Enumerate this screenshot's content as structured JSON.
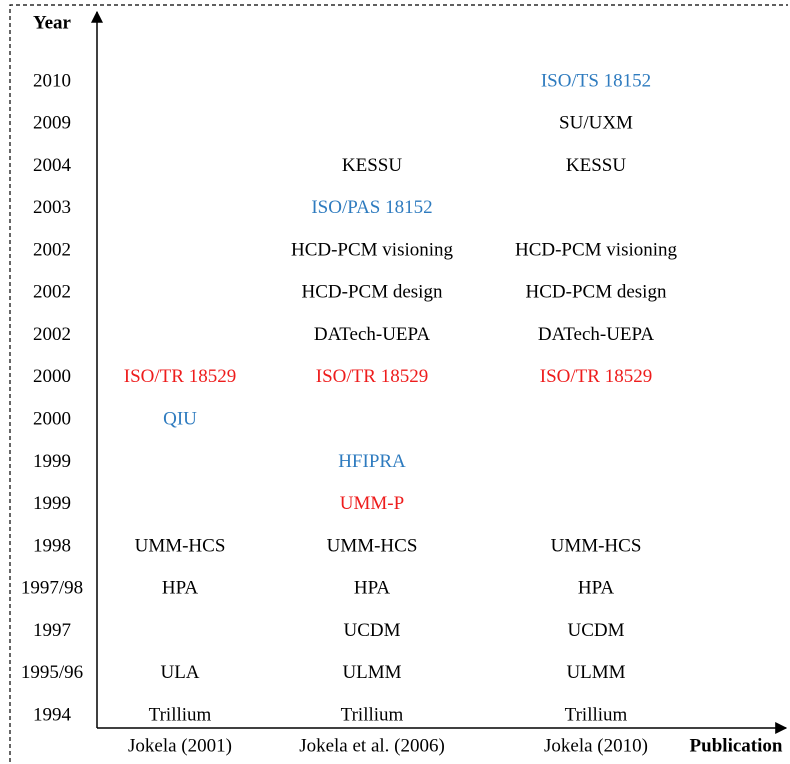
{
  "axes": {
    "y_label": "Year",
    "x_label": "Publication"
  },
  "columns": [
    "Jokela (2001)",
    "Jokela et al. (2006)",
    "Jokela (2010)"
  ],
  "rows": [
    {
      "year": "2010",
      "cells": [
        null,
        null,
        {
          "text": "ISO/TS 18152",
          "color": "#2e7bbf"
        }
      ]
    },
    {
      "year": "2009",
      "cells": [
        null,
        null,
        {
          "text": "SU/UXM",
          "color": "#000000"
        }
      ]
    },
    {
      "year": "2004",
      "cells": [
        null,
        {
          "text": "KESSU",
          "color": "#000000"
        },
        {
          "text": "KESSU",
          "color": "#000000"
        }
      ]
    },
    {
      "year": "2003",
      "cells": [
        null,
        {
          "text": "ISO/PAS 18152",
          "color": "#2e7bbf"
        },
        null
      ]
    },
    {
      "year": "2002",
      "cells": [
        null,
        {
          "text": "HCD-PCM visioning",
          "color": "#000000"
        },
        {
          "text": "HCD-PCM visioning",
          "color": "#000000"
        }
      ]
    },
    {
      "year": "2002",
      "cells": [
        null,
        {
          "text": "HCD-PCM design",
          "color": "#000000"
        },
        {
          "text": "HCD-PCM design",
          "color": "#000000"
        }
      ]
    },
    {
      "year": "2002",
      "cells": [
        null,
        {
          "text": "DATech-UEPA",
          "color": "#000000"
        },
        {
          "text": "DATech-UEPA",
          "color": "#000000"
        }
      ]
    },
    {
      "year": "2000",
      "cells": [
        {
          "text": "ISO/TR 18529",
          "color": "#ee1c1c"
        },
        {
          "text": "ISO/TR 18529",
          "color": "#ee1c1c"
        },
        {
          "text": "ISO/TR 18529",
          "color": "#ee1c1c"
        }
      ]
    },
    {
      "year": "2000",
      "cells": [
        {
          "text": "QIU",
          "color": "#2e7bbf"
        },
        null,
        null
      ]
    },
    {
      "year": "1999",
      "cells": [
        null,
        {
          "text": "HFIPRA",
          "color": "#2e7bbf"
        },
        null
      ]
    },
    {
      "year": "1999",
      "cells": [
        null,
        {
          "text": "UMM-P",
          "color": "#ee1c1c"
        },
        null
      ]
    },
    {
      "year": "1998",
      "cells": [
        {
          "text": "UMM-HCS",
          "color": "#000000"
        },
        {
          "text": "UMM-HCS",
          "color": "#000000"
        },
        {
          "text": "UMM-HCS",
          "color": "#000000"
        }
      ]
    },
    {
      "year": "1997/98",
      "cells": [
        {
          "text": "HPA",
          "color": "#000000"
        },
        {
          "text": "HPA",
          "color": "#000000"
        },
        {
          "text": "HPA",
          "color": "#000000"
        }
      ]
    },
    {
      "year": "1997",
      "cells": [
        null,
        {
          "text": "UCDM",
          "color": "#000000"
        },
        {
          "text": "UCDM",
          "color": "#000000"
        }
      ]
    },
    {
      "year": "1995/96",
      "cells": [
        {
          "text": "ULA",
          "color": "#000000"
        },
        {
          "text": "ULMM",
          "color": "#000000"
        },
        {
          "text": "ULMM",
          "color": "#000000"
        }
      ]
    },
    {
      "year": "1994",
      "cells": [
        {
          "text": "Trillium",
          "color": "#000000"
        },
        {
          "text": "Trillium",
          "color": "#000000"
        },
        {
          "text": "Trillium",
          "color": "#000000"
        }
      ]
    }
  ]
}
